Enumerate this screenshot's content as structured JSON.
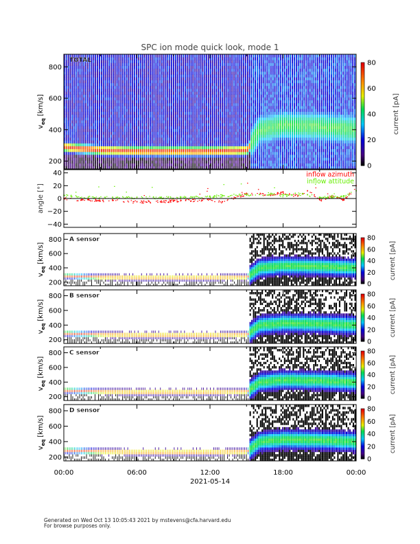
{
  "chart_data": {
    "type": "heatmap",
    "title": "SPC ion mode quick look, mode 1",
    "xlabel": "2021-05-14",
    "x_ticks": [
      "00:00",
      "06:00",
      "12:00",
      "18:00",
      "00:00"
    ],
    "xlim_hours": [
      0,
      24
    ],
    "panels": [
      {
        "id": "total",
        "label": "TOTAL",
        "ylabel": "v_eq [km/s]",
        "ylabel_main": "v",
        "ylabel_sub": "eq",
        "ylabel_unit": "[km/s]",
        "ylim": [
          150,
          880
        ],
        "y_ticks": [
          "200",
          "400",
          "600",
          "800"
        ],
        "y_tick_values": [
          200,
          400,
          600,
          800
        ],
        "colorbar": {
          "label": "current [pA]",
          "range": [
            0,
            80
          ],
          "ticks": [
            "0",
            "20",
            "40",
            "60",
            "80"
          ]
        },
        "band_center_kms": {
          "hours": [
            0,
            3,
            6,
            9,
            12,
            15,
            16,
            18,
            21,
            24
          ],
          "values": [
            290,
            270,
            265,
            265,
            265,
            270,
            400,
            430,
            420,
            400
          ]
        }
      },
      {
        "id": "angle",
        "ylabel": "angle [°]",
        "ylim": [
          -45,
          45
        ],
        "y_ticks": [
          "40",
          "20",
          "0",
          "−20",
          "−40"
        ],
        "y_tick_values": [
          40,
          20,
          0,
          -20,
          -40
        ],
        "legend": [
          "inflow azimuth",
          "inflow attitude"
        ],
        "series": [
          {
            "name": "inflow azimuth",
            "color": "#ff0000",
            "hours": [
              0,
              2,
              4,
              6,
              8,
              10,
              12,
              13,
              15,
              17,
              18,
              19,
              20,
              21,
              22,
              23,
              24
            ],
            "values": [
              0,
              -2,
              -3,
              -5,
              -4,
              -3,
              -1,
              -5,
              8,
              6,
              10,
              5,
              12,
              -2,
              4,
              -2,
              20
            ]
          },
          {
            "name": "inflow attitude",
            "color": "#66ee00",
            "hours": [
              0,
              2,
              4,
              6,
              8,
              10,
              12,
              13,
              15,
              17,
              18,
              19,
              20,
              21,
              22,
              23,
              24
            ],
            "values": [
              5,
              2,
              2,
              2,
              2,
              2,
              3,
              5,
              6,
              8,
              5,
              8,
              6,
              2,
              3,
              4,
              12
            ]
          }
        ]
      },
      {
        "id": "A",
        "label": "A sensor",
        "ylim": [
          150,
          880
        ],
        "y_ticks": [
          "200",
          "400",
          "600",
          "800"
        ],
        "y_tick_values": [
          200,
          400,
          600,
          800
        ],
        "colorbar": {
          "label": "current [pA]",
          "range": [
            0,
            80
          ],
          "ticks": [
            "0",
            "20",
            "40",
            "60",
            "80"
          ]
        }
      },
      {
        "id": "B",
        "label": "B sensor",
        "ylim": [
          150,
          880
        ],
        "y_ticks": [
          "200",
          "400",
          "600",
          "800"
        ],
        "y_tick_values": [
          200,
          400,
          600,
          800
        ],
        "colorbar": {
          "label": "current [pA]",
          "range": [
            0,
            80
          ],
          "ticks": [
            "0",
            "20",
            "40",
            "60",
            "80"
          ]
        }
      },
      {
        "id": "C",
        "label": "C sensor",
        "ylim": [
          150,
          880
        ],
        "y_ticks": [
          "200",
          "400",
          "600",
          "800"
        ],
        "y_tick_values": [
          200,
          400,
          600,
          800
        ],
        "colorbar": {
          "label": "current [pA]",
          "range": [
            0,
            80
          ],
          "ticks": [
            "0",
            "20",
            "40",
            "60",
            "80"
          ]
        }
      },
      {
        "id": "D",
        "label": "D sensor",
        "ylim": [
          150,
          880
        ],
        "y_ticks": [
          "200",
          "400",
          "600",
          "800"
        ],
        "y_tick_values": [
          200,
          400,
          600,
          800
        ],
        "colorbar": {
          "label": "current [pA]",
          "range": [
            0,
            80
          ],
          "ticks": [
            "0",
            "20",
            "40",
            "60",
            "80"
          ]
        }
      }
    ]
  },
  "footer": {
    "line1": "Generated on Wed Oct 13 10:05:43 2021 by mstevens@cfa.harvard.edu",
    "line2": "For browse purposes only."
  }
}
